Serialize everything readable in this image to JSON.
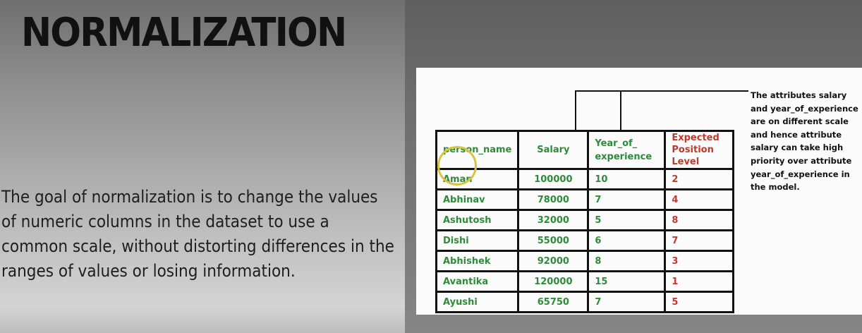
{
  "slide": {
    "title": "NORMALIZATION",
    "description": "The goal of normalization is to change the values of numeric columns in the dataset to use a common scale, without distorting differences in the ranges of values or losing information."
  },
  "table": {
    "headers": [
      "person_name",
      "Salary",
      "Year_of_ experience",
      "Expected Position Level"
    ],
    "rows": [
      [
        "Aman",
        "100000",
        "10",
        "2"
      ],
      [
        "Abhinav",
        "78000",
        "7",
        "4"
      ],
      [
        "Ashutosh",
        "32000",
        "5",
        "8"
      ],
      [
        "Dishi",
        "55000",
        "6",
        "7"
      ],
      [
        "Abhishek",
        "92000",
        "8",
        "3"
      ],
      [
        "Avantika",
        "120000",
        "15",
        "1"
      ],
      [
        "Ayushi",
        "65750",
        "7",
        "5"
      ]
    ]
  },
  "note": "The attributes salary and year_of_experience are on different scale and hence attribute salary can take high priority over attribute year_of_experience in the model.",
  "colors": {
    "green": "#2e8b3a",
    "red": "#c0392b"
  }
}
